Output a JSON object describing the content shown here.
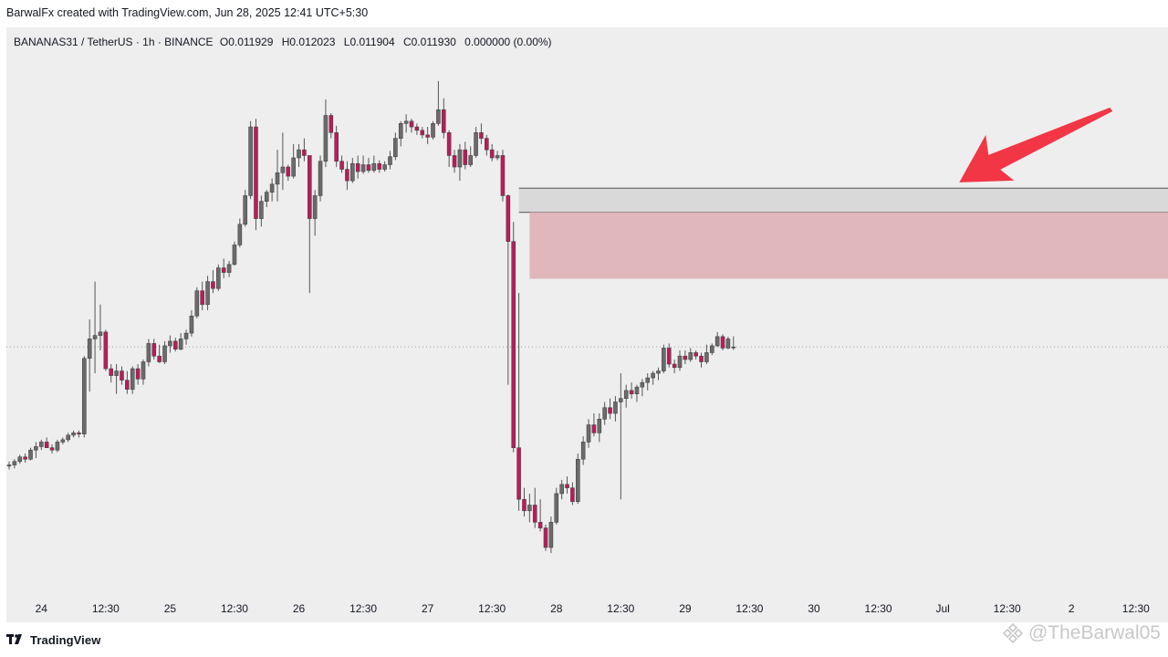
{
  "credit": "BarwalFx created with TradingView.com, Jun 28, 2025 12:41 UTC+5:30",
  "legend": {
    "symbol": "BANANAS31 / TetherUS · 1h · BINANCE",
    "open": "O0.011929",
    "high": "H0.012023",
    "low": "L0.011904",
    "close": "C0.011930",
    "change": "0.000000 (0.00%)"
  },
  "colors": {
    "up": "#6b6b6b",
    "down": "#c2185b",
    "zone_gray": "#d9d9d9",
    "zone_red": "#e0b7bb",
    "arrow": "#f23645",
    "background": "#eeeeee"
  },
  "chart_data": {
    "type": "candlestick",
    "title": "",
    "x_ticks": [
      "24",
      "12:30",
      "25",
      "12:30",
      "26",
      "12:30",
      "27",
      "12:30",
      "28",
      "12:30",
      "29",
      "12:30",
      "30",
      "12:30",
      "Jul",
      "12:30",
      "2",
      "12:30"
    ],
    "last_price": 0.01193,
    "y_range": [
      0.0101,
      0.0144
    ],
    "zones": [
      {
        "kind": "gray",
        "from_bar": 95,
        "to_bar": 216,
        "top": 0.013315,
        "bottom": 0.013105
      },
      {
        "kind": "red",
        "from_bar": 97,
        "to_bar": 216,
        "top": 0.013105,
        "bottom": 0.012525
      }
    ],
    "annotation": {
      "type": "arrow",
      "points_to_bar": 206,
      "points_to_price": 0.01335
    },
    "candles": [
      [
        0.01089,
        0.01093,
        0.01086,
        0.0109
      ],
      [
        0.0109,
        0.01095,
        0.01087,
        0.01093
      ],
      [
        0.01093,
        0.01099,
        0.01091,
        0.01097
      ],
      [
        0.01097,
        0.011,
        0.01092,
        0.01095
      ],
      [
        0.01095,
        0.01105,
        0.01094,
        0.01103
      ],
      [
        0.01103,
        0.0111,
        0.01096,
        0.01106
      ],
      [
        0.01106,
        0.01112,
        0.01103,
        0.0111
      ],
      [
        0.0111,
        0.01114,
        0.01105,
        0.01105
      ],
      [
        0.01105,
        0.01108,
        0.011,
        0.01103
      ],
      [
        0.01103,
        0.01112,
        0.01101,
        0.0111
      ],
      [
        0.0111,
        0.01114,
        0.01108,
        0.01112
      ],
      [
        0.01112,
        0.01118,
        0.0111,
        0.01116
      ],
      [
        0.01116,
        0.0112,
        0.01114,
        0.01118
      ],
      [
        0.01118,
        0.0112,
        0.01114,
        0.01117
      ],
      [
        0.01117,
        0.01185,
        0.01114,
        0.01183
      ],
      [
        0.01183,
        0.01217,
        0.01154,
        0.012
      ],
      [
        0.012,
        0.0125,
        0.0117,
        0.01203
      ],
      [
        0.01203,
        0.0123,
        0.0119,
        0.01206
      ],
      [
        0.01206,
        0.01208,
        0.01172,
        0.01174
      ],
      [
        0.01174,
        0.01178,
        0.01162,
        0.01168
      ],
      [
        0.01168,
        0.01178,
        0.01152,
        0.01172
      ],
      [
        0.01172,
        0.01176,
        0.0116,
        0.01164
      ],
      [
        0.01164,
        0.01172,
        0.01152,
        0.01156
      ],
      [
        0.01156,
        0.01176,
        0.01152,
        0.01174
      ],
      [
        0.01174,
        0.01178,
        0.0116,
        0.01165
      ],
      [
        0.01165,
        0.01182,
        0.0116,
        0.0118
      ],
      [
        0.0118,
        0.012,
        0.01176,
        0.01196
      ],
      [
        0.01196,
        0.012,
        0.01182,
        0.01185
      ],
      [
        0.01185,
        0.01195,
        0.01179,
        0.0118
      ],
      [
        0.0118,
        0.01198,
        0.01178,
        0.01194
      ],
      [
        0.01194,
        0.01203,
        0.01188,
        0.01198
      ],
      [
        0.01198,
        0.01201,
        0.01189,
        0.01191
      ],
      [
        0.01191,
        0.01205,
        0.0119,
        0.012
      ],
      [
        0.012,
        0.01208,
        0.01195,
        0.01205
      ],
      [
        0.01205,
        0.01225,
        0.01202,
        0.0122
      ],
      [
        0.0122,
        0.01245,
        0.01218,
        0.01242
      ],
      [
        0.01242,
        0.0125,
        0.01225,
        0.0123
      ],
      [
        0.0123,
        0.01255,
        0.01225,
        0.0125
      ],
      [
        0.0125,
        0.0126,
        0.0124,
        0.01244
      ],
      [
        0.01244,
        0.01265,
        0.01242,
        0.01262
      ],
      [
        0.01262,
        0.0127,
        0.01253,
        0.01258
      ],
      [
        0.01258,
        0.01268,
        0.01254,
        0.01265
      ],
      [
        0.01265,
        0.01285,
        0.01264,
        0.01282
      ],
      [
        0.01282,
        0.01305,
        0.0128,
        0.013
      ],
      [
        0.013,
        0.0133,
        0.01298,
        0.01325
      ],
      [
        0.01325,
        0.0139,
        0.01322,
        0.01385
      ],
      [
        0.01385,
        0.01392,
        0.01295,
        0.01305
      ],
      [
        0.01305,
        0.01325,
        0.01298,
        0.0132
      ],
      [
        0.0132,
        0.0133,
        0.01315,
        0.01328
      ],
      [
        0.01328,
        0.0134,
        0.0132,
        0.01335
      ],
      [
        0.01335,
        0.01365,
        0.0132,
        0.01345
      ],
      [
        0.01345,
        0.0138,
        0.0133,
        0.0135
      ],
      [
        0.0135,
        0.01352,
        0.01338,
        0.01342
      ],
      [
        0.01342,
        0.0137,
        0.0134,
        0.01358
      ],
      [
        0.01358,
        0.0137,
        0.0135,
        0.01365
      ],
      [
        0.01365,
        0.01375,
        0.01355,
        0.0136
      ],
      [
        0.0136,
        0.0136,
        0.0124,
        0.01305
      ],
      [
        0.01305,
        0.0133,
        0.0129,
        0.01325
      ],
      [
        0.01325,
        0.0136,
        0.0132,
        0.01355
      ],
      [
        0.01355,
        0.01409,
        0.0135,
        0.01395
      ],
      [
        0.01395,
        0.01397,
        0.01375,
        0.0138
      ],
      [
        0.0138,
        0.01386,
        0.0135,
        0.01355
      ],
      [
        0.01355,
        0.0136,
        0.01345,
        0.01348
      ],
      [
        0.01348,
        0.01355,
        0.0133,
        0.01338
      ],
      [
        0.01338,
        0.01358,
        0.01336,
        0.01353
      ],
      [
        0.01353,
        0.0136,
        0.0134,
        0.01346
      ],
      [
        0.01346,
        0.0136,
        0.01344,
        0.01352
      ],
      [
        0.01352,
        0.01358,
        0.01345,
        0.01347
      ],
      [
        0.01347,
        0.0136,
        0.01345,
        0.01353
      ],
      [
        0.01353,
        0.01356,
        0.01345,
        0.01348
      ],
      [
        0.01348,
        0.01355,
        0.01346,
        0.01352
      ],
      [
        0.01352,
        0.01364,
        0.01348,
        0.01359
      ],
      [
        0.01359,
        0.0138,
        0.01356,
        0.01375
      ],
      [
        0.01375,
        0.0139,
        0.01368,
        0.01388
      ],
      [
        0.01388,
        0.01396,
        0.0138,
        0.0139
      ],
      [
        0.0139,
        0.01392,
        0.0138,
        0.01385
      ],
      [
        0.01385,
        0.01388,
        0.01378,
        0.01382
      ],
      [
        0.01382,
        0.01385,
        0.01375,
        0.01378
      ],
      [
        0.01378,
        0.01385,
        0.0137,
        0.01376
      ],
      [
        0.01376,
        0.0139,
        0.01374,
        0.01388
      ],
      [
        0.01388,
        0.01425,
        0.01386,
        0.014
      ],
      [
        0.014,
        0.0141,
        0.01375,
        0.0138
      ],
      [
        0.0138,
        0.01382,
        0.0135,
        0.0136
      ],
      [
        0.0136,
        0.01365,
        0.01345,
        0.0135
      ],
      [
        0.0135,
        0.0137,
        0.01338,
        0.01365
      ],
      [
        0.01365,
        0.01372,
        0.01348,
        0.01352
      ],
      [
        0.01352,
        0.01368,
        0.0135,
        0.0136
      ],
      [
        0.0136,
        0.01385,
        0.01358,
        0.0138
      ],
      [
        0.0138,
        0.01388,
        0.0137,
        0.01375
      ],
      [
        0.01375,
        0.01378,
        0.0136,
        0.01365
      ],
      [
        0.01365,
        0.0137,
        0.01355,
        0.01358
      ],
      [
        0.01358,
        0.01364,
        0.01356,
        0.0136
      ],
      [
        0.0136,
        0.01365,
        0.0132,
        0.01325
      ],
      [
        0.01325,
        0.01326,
        0.0116,
        0.01285
      ],
      [
        0.01285,
        0.01302,
        0.01101,
        0.01105
      ],
      [
        0.01105,
        0.0124,
        0.0105,
        0.0106
      ],
      [
        0.0106,
        0.0107,
        0.01045,
        0.0105
      ],
      [
        0.0105,
        0.01065,
        0.0104,
        0.01055
      ],
      [
        0.01055,
        0.0107,
        0.01035,
        0.0104
      ],
      [
        0.0104,
        0.0106,
        0.01032,
        0.01035
      ],
      [
        0.01035,
        0.01038,
        0.01015,
        0.01018
      ],
      [
        0.01018,
        0.01045,
        0.01013,
        0.0104
      ],
      [
        0.0104,
        0.0107,
        0.01038,
        0.01065
      ],
      [
        0.01065,
        0.01077,
        0.0106,
        0.01073
      ],
      [
        0.01073,
        0.0108,
        0.01065,
        0.0107
      ],
      [
        0.0107,
        0.01075,
        0.01055,
        0.01058
      ],
      [
        0.01058,
        0.011,
        0.01056,
        0.01095
      ],
      [
        0.01095,
        0.01115,
        0.0109,
        0.0111
      ],
      [
        0.0111,
        0.0113,
        0.01105,
        0.01125
      ],
      [
        0.01125,
        0.01135,
        0.01115,
        0.01118
      ],
      [
        0.01118,
        0.01135,
        0.0111,
        0.0113
      ],
      [
        0.0113,
        0.01145,
        0.01125,
        0.0114
      ],
      [
        0.0114,
        0.01148,
        0.0113,
        0.01135
      ],
      [
        0.01135,
        0.0115,
        0.01128,
        0.01145
      ],
      [
        0.01145,
        0.0117,
        0.0106,
        0.01148
      ],
      [
        0.01148,
        0.0116,
        0.0114,
        0.01155
      ],
      [
        0.01155,
        0.01162,
        0.01148,
        0.01152
      ],
      [
        0.01152,
        0.0116,
        0.01145,
        0.01158
      ],
      [
        0.01158,
        0.01165,
        0.0115,
        0.01162
      ],
      [
        0.01162,
        0.0117,
        0.01155,
        0.01166
      ],
      [
        0.01166,
        0.01172,
        0.0116,
        0.0117
      ],
      [
        0.0117,
        0.01175,
        0.01164,
        0.01172
      ],
      [
        0.01172,
        0.01195,
        0.0117,
        0.01192
      ],
      [
        0.01192,
        0.01196,
        0.01175,
        0.01178
      ],
      [
        0.01178,
        0.01182,
        0.0117,
        0.01175
      ],
      [
        0.01175,
        0.0119,
        0.01172,
        0.01185
      ],
      [
        0.01185,
        0.0119,
        0.01178,
        0.01182
      ],
      [
        0.01182,
        0.01192,
        0.0118,
        0.01188
      ],
      [
        0.01188,
        0.0119,
        0.01182,
        0.01185
      ],
      [
        0.01185,
        0.01188,
        0.01175,
        0.0118
      ],
      [
        0.0118,
        0.01195,
        0.01178,
        0.01188
      ],
      [
        0.01188,
        0.01196,
        0.01186,
        0.01194
      ],
      [
        0.01194,
        0.01206,
        0.01193,
        0.01202
      ],
      [
        0.01202,
        0.01204,
        0.0119,
        0.01192
      ],
      [
        0.01192,
        0.01202,
        0.01191,
        0.012
      ],
      [
        0.011929,
        0.012023,
        0.011904,
        0.01193
      ]
    ]
  },
  "x_labels": [
    {
      "text": "24",
      "bar": 6
    },
    {
      "text": "12:30",
      "bar": 18
    },
    {
      "text": "25",
      "bar": 30
    },
    {
      "text": "12:30",
      "bar": 42
    },
    {
      "text": "26",
      "bar": 54
    },
    {
      "text": "12:30",
      "bar": 66
    },
    {
      "text": "27",
      "bar": 78
    },
    {
      "text": "12:30",
      "bar": 90
    },
    {
      "text": "28",
      "bar": 102
    },
    {
      "text": "12:30",
      "bar": 114
    },
    {
      "text": "29",
      "bar": 126
    },
    {
      "text": "12:30",
      "bar": 138
    },
    {
      "text": "30",
      "bar": 150
    },
    {
      "text": "12:30",
      "bar": 162
    },
    {
      "text": "Jul",
      "bar": 174
    },
    {
      "text": "12:30",
      "bar": 186
    },
    {
      "text": "2",
      "bar": 198
    },
    {
      "text": "12:30",
      "bar": 210
    }
  ],
  "footer": {
    "brand": "TradingView",
    "watermark": "@TheBarwal05"
  }
}
